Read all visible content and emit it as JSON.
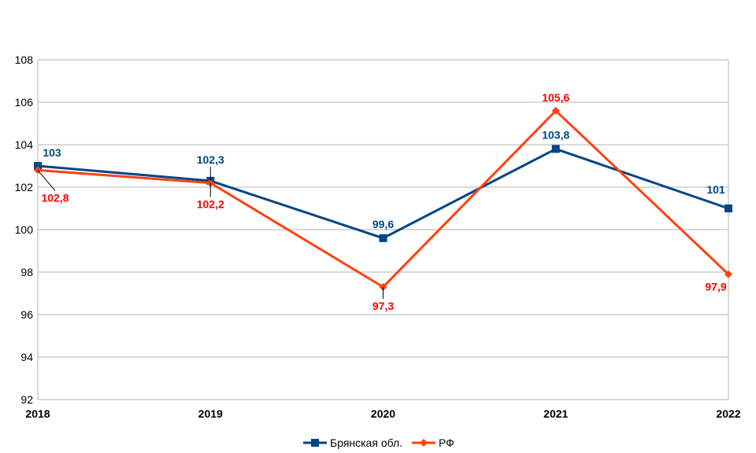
{
  "chart_data": {
    "type": "line",
    "title": "",
    "xlabel": "",
    "ylabel": "",
    "categories": [
      "2018",
      "2019",
      "2020",
      "2021",
      "2022"
    ],
    "ylim": [
      92,
      108
    ],
    "yticks": [
      92,
      94,
      96,
      98,
      100,
      102,
      104,
      106,
      108
    ],
    "grid": true,
    "legend_position": "bottom",
    "series": [
      {
        "name": "Брянская обл.",
        "color": "#004586",
        "label_color": "#004586",
        "marker": "square",
        "values": [
          103,
          102.3,
          99.6,
          103.8,
          101
        ],
        "labels": [
          "103",
          "102,3",
          "99,6",
          "103,8",
          "101"
        ]
      },
      {
        "name": "РФ",
        "color": "#ff420e",
        "label_color": "#ff0000",
        "marker": "diamond",
        "values": [
          102.8,
          102.2,
          97.3,
          105.6,
          97.9
        ],
        "labels": [
          "102,8",
          "102,2",
          "97,3",
          "105,6",
          "97,9"
        ]
      }
    ]
  }
}
